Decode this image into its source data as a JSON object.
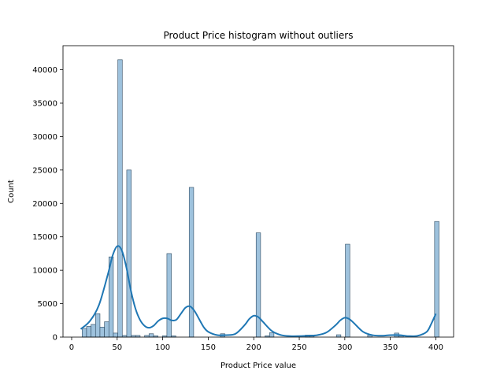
{
  "chart_data": {
    "type": "bar",
    "title": "Product Price histogram without outliers",
    "xlabel": "Product Price value",
    "ylabel": "Count",
    "xlim": [
      -9.5,
      419.5
    ],
    "ylim": [
      0,
      43600
    ],
    "xticks": [
      0,
      50,
      100,
      150,
      200,
      250,
      300,
      350,
      400
    ],
    "yticks": [
      0,
      5000,
      10000,
      15000,
      20000,
      25000,
      30000,
      35000,
      40000
    ],
    "grid": false,
    "bin_width": 4.9,
    "bars": [
      {
        "x": 11.5,
        "value": 1300
      },
      {
        "x": 16.4,
        "value": 1600
      },
      {
        "x": 21.3,
        "value": 1900
      },
      {
        "x": 26.2,
        "value": 3500
      },
      {
        "x": 31.1,
        "value": 1500
      },
      {
        "x": 36.0,
        "value": 2300
      },
      {
        "x": 40.9,
        "value": 12000
      },
      {
        "x": 45.8,
        "value": 600
      },
      {
        "x": 50.7,
        "value": 41500
      },
      {
        "x": 55.6,
        "value": 250
      },
      {
        "x": 60.5,
        "value": 25000
      },
      {
        "x": 65.4,
        "value": 250
      },
      {
        "x": 70.3,
        "value": 250
      },
      {
        "x": 80.1,
        "value": 250
      },
      {
        "x": 85.0,
        "value": 500
      },
      {
        "x": 89.9,
        "value": 200
      },
      {
        "x": 99.7,
        "value": 200
      },
      {
        "x": 104.6,
        "value": 12500
      },
      {
        "x": 109.5,
        "value": 200
      },
      {
        "x": 129.1,
        "value": 22400
      },
      {
        "x": 163.4,
        "value": 500
      },
      {
        "x": 202.6,
        "value": 15600
      },
      {
        "x": 212.4,
        "value": 200
      },
      {
        "x": 217.3,
        "value": 650
      },
      {
        "x": 256.5,
        "value": 300
      },
      {
        "x": 261.4,
        "value": 300
      },
      {
        "x": 290.8,
        "value": 350
      },
      {
        "x": 300.6,
        "value": 13900
      },
      {
        "x": 325.1,
        "value": 300
      },
      {
        "x": 354.5,
        "value": 600
      },
      {
        "x": 359.4,
        "value": 200
      },
      {
        "x": 398.6,
        "value": 17300
      }
    ],
    "kde": {
      "name": "",
      "x": [
        10,
        20,
        30,
        40,
        45,
        50,
        55,
        60,
        65,
        70,
        75,
        80,
        85,
        90,
        95,
        100,
        105,
        110,
        115,
        120,
        125,
        130,
        135,
        140,
        145,
        150,
        160,
        170,
        180,
        190,
        195,
        200,
        205,
        210,
        220,
        230,
        240,
        250,
        260,
        270,
        280,
        290,
        295,
        300,
        305,
        310,
        320,
        330,
        340,
        350,
        360,
        370,
        380,
        390,
        395,
        400
      ],
      "y": [
        1200,
        2400,
        4800,
        9500,
        12200,
        13600,
        13000,
        10500,
        7000,
        4300,
        2600,
        1700,
        1400,
        1700,
        2400,
        2800,
        2800,
        2500,
        2600,
        3500,
        4400,
        4600,
        3900,
        2700,
        1500,
        800,
        300,
        300,
        500,
        1800,
        2700,
        3200,
        3000,
        2300,
        900,
        300,
        150,
        150,
        200,
        300,
        700,
        1800,
        2500,
        2900,
        2700,
        2100,
        800,
        300,
        200,
        300,
        300,
        150,
        200,
        800,
        2000,
        3500
      ]
    },
    "colors": {
      "bar_fill": "#9ec2dd",
      "bar_edge": "#2e4a61",
      "kde_line": "#1f77b4"
    }
  }
}
